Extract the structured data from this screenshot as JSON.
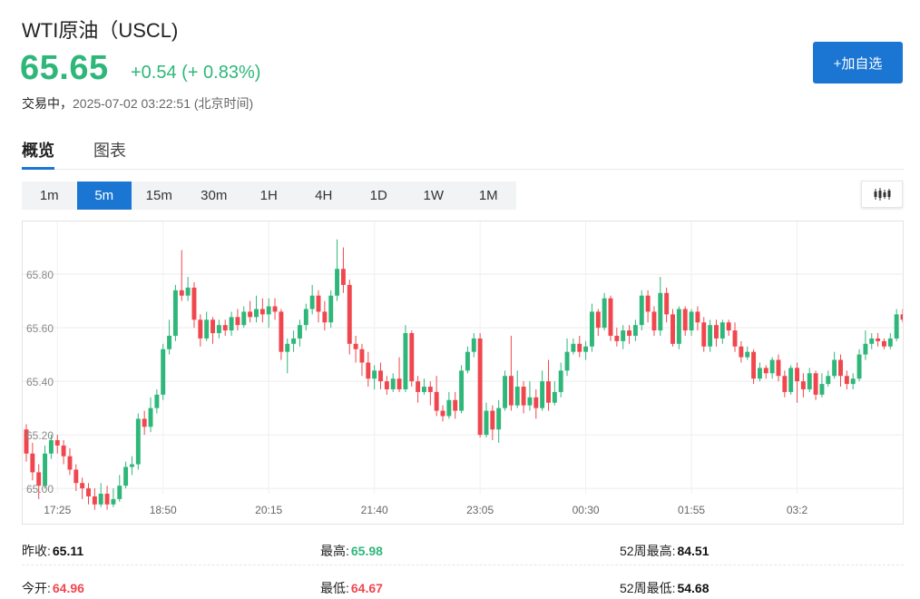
{
  "header": {
    "title": "WTI原油（USCL)",
    "price": "65.65",
    "change": "+0.54 (+ 0.83%)",
    "status_lead": "交易中，",
    "status_time": "2025-07-02 03:22:51 (北京时间)",
    "add_button": "+加自选"
  },
  "tabs": [
    {
      "label": "概览",
      "active": true
    },
    {
      "label": "图表",
      "active": false
    }
  ],
  "periods": [
    {
      "label": "1m",
      "active": false
    },
    {
      "label": "5m",
      "active": true
    },
    {
      "label": "15m",
      "active": false
    },
    {
      "label": "30m",
      "active": false
    },
    {
      "label": "1H",
      "active": false
    },
    {
      "label": "4H",
      "active": false
    },
    {
      "label": "1D",
      "active": false
    },
    {
      "label": "1W",
      "active": false
    },
    {
      "label": "1M",
      "active": false
    }
  ],
  "chart_type_icon": "candlestick-icon",
  "colors": {
    "up": "#2fb77a",
    "down": "#f0474f",
    "accent": "#1a76d2"
  },
  "chart_data": {
    "type": "candlestick",
    "title": "",
    "xlabel": "",
    "ylabel": "",
    "ylim": [
      64.98,
      65.97
    ],
    "grid": true,
    "ytick_labels": [
      "65.80",
      "65.60",
      "65.40",
      "65.20",
      "65.00"
    ],
    "yticks": [
      65.8,
      65.6,
      65.4,
      65.2,
      65.0
    ],
    "xtick_labels": [
      "17:25",
      "18:50",
      "20:15",
      "21:40",
      "23:05",
      "00:30",
      "01:55",
      "03:2"
    ],
    "xtick_bar_index": [
      5,
      22,
      39,
      56,
      73,
      90,
      107,
      124
    ],
    "candles": [
      [
        65.22,
        65.13,
        65.24,
        65.1
      ],
      [
        65.13,
        65.06,
        65.17,
        65.03
      ],
      [
        65.06,
        65.01,
        65.09,
        64.96
      ],
      [
        65.01,
        65.13,
        65.16,
        65.0
      ],
      [
        65.13,
        65.18,
        65.2,
        65.11
      ],
      [
        65.18,
        65.16,
        65.2,
        65.13
      ],
      [
        65.16,
        65.12,
        65.18,
        65.09
      ],
      [
        65.12,
        65.07,
        65.15,
        65.05
      ],
      [
        65.07,
        65.02,
        65.09,
        64.99
      ],
      [
        65.02,
        65.0,
        65.04,
        64.96
      ],
      [
        65.0,
        64.97,
        65.02,
        64.94
      ],
      [
        64.97,
        64.94,
        65.0,
        64.92
      ],
      [
        64.94,
        64.98,
        65.02,
        64.93
      ],
      [
        64.98,
        64.94,
        65.01,
        64.92
      ],
      [
        64.94,
        64.96,
        65.0,
        64.93
      ],
      [
        64.96,
        65.01,
        65.05,
        64.95
      ],
      [
        65.01,
        65.08,
        65.1,
        65.0
      ],
      [
        65.08,
        65.09,
        65.12,
        65.05
      ],
      [
        65.09,
        65.26,
        65.28,
        65.07
      ],
      [
        65.26,
        65.23,
        65.29,
        65.2
      ],
      [
        65.23,
        65.3,
        65.34,
        65.21
      ],
      [
        65.3,
        65.35,
        65.37,
        65.28
      ],
      [
        65.35,
        65.52,
        65.54,
        65.33
      ],
      [
        65.52,
        65.57,
        65.63,
        65.5
      ],
      [
        65.57,
        65.74,
        65.76,
        65.55
      ],
      [
        65.74,
        65.72,
        65.89,
        65.7
      ],
      [
        65.72,
        65.75,
        65.79,
        65.7
      ],
      [
        65.75,
        65.63,
        65.77,
        65.6
      ],
      [
        65.63,
        65.56,
        65.65,
        65.53
      ],
      [
        65.56,
        65.63,
        65.66,
        65.55
      ],
      [
        65.63,
        65.58,
        65.64,
        65.54
      ],
      [
        65.58,
        65.61,
        65.63,
        65.56
      ],
      [
        65.61,
        65.59,
        65.63,
        65.57
      ],
      [
        65.59,
        65.64,
        65.66,
        65.57
      ],
      [
        65.64,
        65.61,
        65.67,
        65.59
      ],
      [
        65.61,
        65.66,
        65.68,
        65.6
      ],
      [
        65.66,
        65.64,
        65.7,
        65.62
      ],
      [
        65.64,
        65.67,
        65.72,
        65.62
      ],
      [
        65.67,
        65.65,
        65.71,
        65.62
      ],
      [
        65.65,
        65.68,
        65.71,
        65.6
      ],
      [
        65.68,
        65.66,
        65.71,
        65.63
      ],
      [
        65.66,
        65.51,
        65.67,
        65.48
      ],
      [
        65.51,
        65.54,
        65.56,
        65.43
      ],
      [
        65.54,
        65.56,
        65.59,
        65.51
      ],
      [
        65.56,
        65.61,
        65.63,
        65.53
      ],
      [
        65.61,
        65.67,
        65.69,
        65.59
      ],
      [
        65.67,
        65.72,
        65.76,
        65.65
      ],
      [
        65.72,
        65.66,
        65.74,
        65.62
      ],
      [
        65.66,
        65.62,
        65.7,
        65.59
      ],
      [
        65.62,
        65.72,
        65.74,
        65.6
      ],
      [
        65.72,
        65.82,
        65.93,
        65.7
      ],
      [
        65.82,
        65.76,
        65.9,
        65.73
      ],
      [
        65.76,
        65.54,
        65.78,
        65.5
      ],
      [
        65.54,
        65.52,
        65.57,
        65.47
      ],
      [
        65.52,
        65.47,
        65.54,
        65.42
      ],
      [
        65.47,
        65.41,
        65.51,
        65.38
      ],
      [
        65.41,
        65.44,
        65.46,
        65.37
      ],
      [
        65.44,
        65.4,
        65.47,
        65.37
      ],
      [
        65.4,
        65.37,
        65.42,
        65.35
      ],
      [
        65.37,
        65.41,
        65.43,
        65.36
      ],
      [
        65.41,
        65.37,
        65.49,
        65.36
      ],
      [
        65.37,
        65.58,
        65.61,
        65.36
      ],
      [
        65.58,
        65.4,
        65.59,
        65.38
      ],
      [
        65.4,
        65.36,
        65.42,
        65.32
      ],
      [
        65.36,
        65.38,
        65.41,
        65.35
      ],
      [
        65.38,
        65.36,
        65.4,
        65.31
      ],
      [
        65.36,
        65.29,
        65.42,
        65.27
      ],
      [
        65.29,
        65.27,
        65.31,
        65.25
      ],
      [
        65.27,
        65.33,
        65.36,
        65.26
      ],
      [
        65.33,
        65.29,
        65.36,
        65.26
      ],
      [
        65.29,
        65.44,
        65.46,
        65.28
      ],
      [
        65.44,
        65.51,
        65.53,
        65.43
      ],
      [
        65.51,
        65.56,
        65.58,
        65.49
      ],
      [
        65.56,
        65.2,
        65.58,
        65.19
      ],
      [
        65.2,
        65.29,
        65.32,
        65.19
      ],
      [
        65.29,
        65.22,
        65.31,
        65.18
      ],
      [
        65.22,
        65.3,
        65.33,
        65.17
      ],
      [
        65.3,
        65.42,
        65.44,
        65.29
      ],
      [
        65.42,
        65.31,
        65.57,
        65.29
      ],
      [
        65.31,
        65.38,
        65.44,
        65.3
      ],
      [
        65.38,
        65.31,
        65.4,
        65.28
      ],
      [
        65.31,
        65.34,
        65.4,
        65.29
      ],
      [
        65.34,
        65.3,
        65.37,
        65.26
      ],
      [
        65.3,
        65.4,
        65.44,
        65.29
      ],
      [
        65.4,
        65.32,
        65.48,
        65.29
      ],
      [
        65.32,
        65.36,
        65.4,
        65.31
      ],
      [
        65.36,
        65.44,
        65.47,
        65.34
      ],
      [
        65.44,
        65.51,
        65.56,
        65.42
      ],
      [
        65.51,
        65.54,
        65.56,
        65.5
      ],
      [
        65.54,
        65.51,
        65.57,
        65.49
      ],
      [
        65.51,
        65.53,
        65.55,
        65.48
      ],
      [
        65.53,
        65.66,
        65.69,
        65.51
      ],
      [
        65.66,
        65.6,
        65.67,
        65.57
      ],
      [
        65.6,
        65.71,
        65.73,
        65.59
      ],
      [
        65.71,
        65.57,
        65.72,
        65.55
      ],
      [
        65.57,
        65.55,
        65.6,
        65.53
      ],
      [
        65.55,
        65.59,
        65.61,
        65.52
      ],
      [
        65.59,
        65.57,
        65.61,
        65.54
      ],
      [
        65.57,
        65.61,
        65.63,
        65.55
      ],
      [
        65.61,
        65.72,
        65.74,
        65.59
      ],
      [
        65.72,
        65.66,
        65.74,
        65.62
      ],
      [
        65.66,
        65.59,
        65.68,
        65.57
      ],
      [
        65.59,
        65.73,
        65.79,
        65.57
      ],
      [
        65.73,
        65.65,
        65.75,
        65.62
      ],
      [
        65.65,
        65.54,
        65.67,
        65.53
      ],
      [
        65.54,
        65.67,
        65.68,
        65.52
      ],
      [
        65.67,
        65.59,
        65.68,
        65.57
      ],
      [
        65.59,
        65.66,
        65.67,
        65.57
      ],
      [
        65.66,
        65.62,
        65.68,
        65.59
      ],
      [
        65.62,
        65.53,
        65.64,
        65.51
      ],
      [
        65.53,
        65.61,
        65.63,
        65.51
      ],
      [
        65.61,
        65.56,
        65.63,
        65.53
      ],
      [
        65.56,
        65.62,
        65.63,
        65.54
      ],
      [
        65.62,
        65.59,
        65.63,
        65.57
      ],
      [
        65.59,
        65.53,
        65.62,
        65.51
      ],
      [
        65.53,
        65.49,
        65.55,
        65.47
      ],
      [
        65.49,
        65.51,
        65.53,
        65.48
      ],
      [
        65.51,
        65.41,
        65.52,
        65.39
      ],
      [
        65.41,
        65.45,
        65.47,
        65.4
      ],
      [
        65.45,
        65.43,
        65.46,
        65.41
      ],
      [
        65.43,
        65.48,
        65.49,
        65.41
      ],
      [
        65.48,
        65.42,
        65.5,
        65.4
      ],
      [
        65.42,
        65.36,
        65.44,
        65.34
      ],
      [
        65.36,
        65.45,
        65.46,
        65.35
      ],
      [
        65.45,
        65.4,
        65.47,
        65.32
      ],
      [
        65.4,
        65.37,
        65.43,
        65.34
      ],
      [
        65.37,
        65.43,
        65.45,
        65.36
      ],
      [
        65.43,
        65.35,
        65.44,
        65.33
      ],
      [
        65.35,
        65.39,
        65.43,
        65.34
      ],
      [
        65.39,
        65.42,
        65.44,
        65.38
      ],
      [
        65.42,
        65.48,
        65.51,
        65.41
      ],
      [
        65.48,
        65.42,
        65.5,
        65.38
      ],
      [
        65.42,
        65.39,
        65.44,
        65.37
      ],
      [
        65.39,
        65.41,
        65.43,
        65.37
      ],
      [
        65.41,
        65.5,
        65.52,
        65.4
      ],
      [
        65.5,
        65.54,
        65.59,
        65.48
      ],
      [
        65.54,
        65.56,
        65.58,
        65.52
      ],
      [
        65.56,
        65.55,
        65.58,
        65.53
      ],
      [
        65.55,
        65.53,
        65.56,
        65.52
      ],
      [
        65.53,
        65.56,
        65.58,
        65.52
      ],
      [
        65.56,
        65.65,
        65.67,
        65.55
      ],
      [
        65.65,
        65.63,
        65.67,
        65.62
      ]
    ]
  },
  "stats": {
    "prev_close_label": "昨收:",
    "prev_close": "65.11",
    "high_label": "最高:",
    "high": "65.98",
    "w52_high_label": "52周最高:",
    "w52_high": "84.51",
    "open_label": "今开:",
    "open": "64.96",
    "low_label": "最低:",
    "low": "64.67",
    "w52_low_label": "52周最低:",
    "w52_low": "54.68"
  }
}
